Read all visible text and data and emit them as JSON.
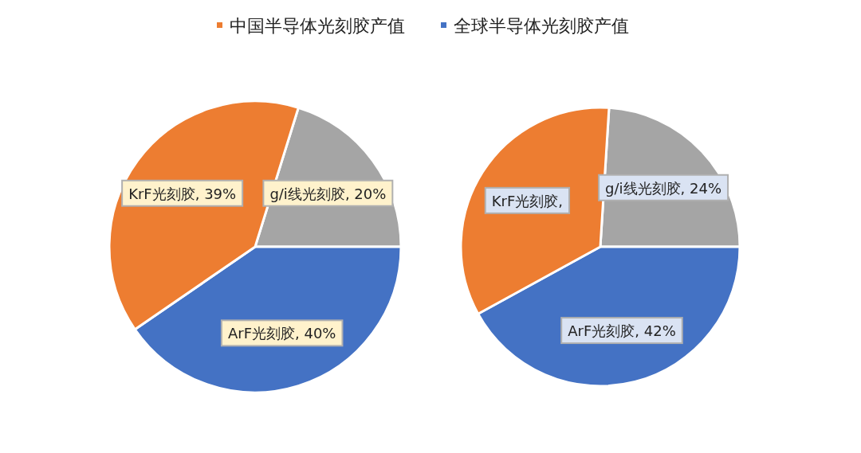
{
  "chart_data": [
    {
      "type": "pie",
      "categories": [
        "g/i线光刻胶",
        "ArF光刻胶",
        "KrF光刻胶"
      ],
      "colors": [
        "#a5a5a5",
        "#4472c4",
        "#ed7d31"
      ],
      "legend": "top",
      "series": [
        {
          "name": "中国半导体光刻胶产值",
          "color": "#ed7d31",
          "values": [
            20,
            40,
            39
          ]
        }
      ],
      "value_labels": [
        ", 20%",
        ", 40%",
        ", 39%"
      ]
    },
    {
      "type": "pie",
      "categories": [
        "g/i线光刻胶",
        "ArF光刻胶",
        "KrF光刻胶"
      ],
      "colors": [
        "#a5a5a5",
        "#4472c4",
        "#ed7d31"
      ],
      "legend": "top",
      "series": [
        {
          "name": "全球半导体光刻胶产值",
          "color": "#4472c4",
          "values": [
            24,
            42,
            34
          ]
        }
      ],
      "value_labels": [
        ", 24%",
        ", 42%",
        ","
      ]
    }
  ]
}
